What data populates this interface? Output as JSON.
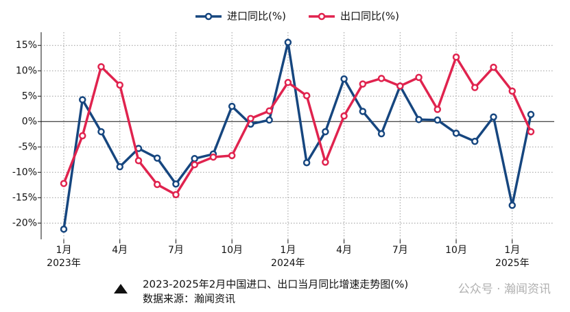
{
  "chart_data": {
    "type": "line",
    "categories": [
      [
        "1月",
        "2023年"
      ],
      null,
      null,
      [
        "4月"
      ],
      null,
      null,
      [
        "7月"
      ],
      null,
      null,
      [
        "10月"
      ],
      null,
      null,
      [
        "1月",
        "2024年"
      ],
      null,
      null,
      [
        "4月"
      ],
      null,
      null,
      [
        "7月"
      ],
      null,
      null,
      [
        "10月"
      ],
      null,
      null,
      [
        "1月",
        "2025年"
      ],
      null
    ],
    "series": [
      {
        "name": "进口同比(%)",
        "color": "#16467f",
        "values": [
          -21.2,
          4.3,
          -2.0,
          -8.9,
          -5.3,
          -7.2,
          -12.3,
          -7.3,
          -6.4,
          3.0,
          -0.5,
          0.3,
          15.6,
          -8.1,
          -2.0,
          8.4,
          2.0,
          -2.4,
          7.0,
          0.4,
          0.3,
          -2.3,
          -3.9,
          0.9,
          -16.5,
          1.4
        ]
      },
      {
        "name": "出口同比(%)",
        "color": "#e0234e",
        "values": [
          -12.2,
          -2.8,
          10.8,
          7.2,
          -7.7,
          -12.4,
          -14.4,
          -8.5,
          -7.0,
          -6.7,
          0.6,
          2.1,
          7.7,
          5.1,
          -8.0,
          1.1,
          7.4,
          8.5,
          7.0,
          8.7,
          2.4,
          12.7,
          6.7,
          10.7,
          6.0,
          -2.0
        ]
      }
    ],
    "ylim": [
      -23.2,
      17.6
    ],
    "yticks": [
      {
        "value": -20,
        "label": "-20%"
      },
      {
        "value": -15,
        "label": "-15%"
      },
      {
        "value": -10,
        "label": "-10%"
      },
      {
        "value": -5,
        "label": "-5%"
      },
      {
        "value": 0,
        "label": "0%"
      },
      {
        "value": 5,
        "label": "5%"
      },
      {
        "value": 10,
        "label": "10%"
      },
      {
        "value": 15,
        "label": "15%"
      }
    ],
    "grid": true,
    "legend": "top",
    "caption": "2023-2025年2月中国进口、出口当月同比增速走势图(%)",
    "source": "数据来源：瀚闻资讯",
    "watermark": "公众号 · 瀚闻资讯"
  }
}
